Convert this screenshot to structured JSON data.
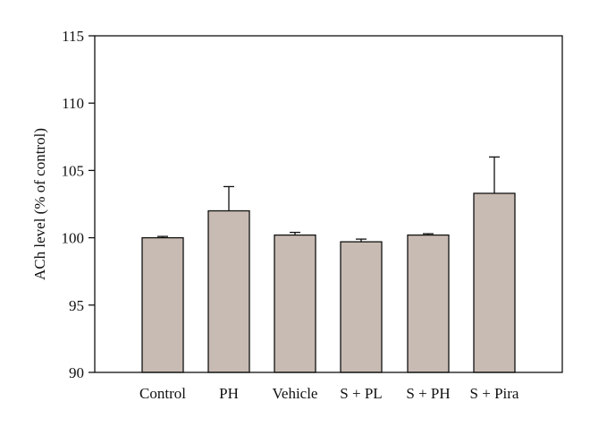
{
  "chart_data": {
    "type": "bar",
    "ylabel": "ACh level (% of control)",
    "xlabel": "",
    "ylim": [
      90,
      115
    ],
    "yticks": [
      90,
      95,
      100,
      105,
      110,
      115
    ],
    "categories": [
      "Control",
      "PH",
      "Vehicle",
      "S + PL",
      "S + PH",
      "S + Pira"
    ],
    "values": [
      100.0,
      102.0,
      100.2,
      99.7,
      100.2,
      103.3
    ],
    "errors": [
      0.1,
      1.8,
      0.2,
      0.2,
      0.1,
      2.7
    ],
    "grid": false,
    "colors": {
      "bar_fill": "#c8bbb3",
      "bar_stroke": "#111111",
      "axis": "#111111"
    }
  }
}
